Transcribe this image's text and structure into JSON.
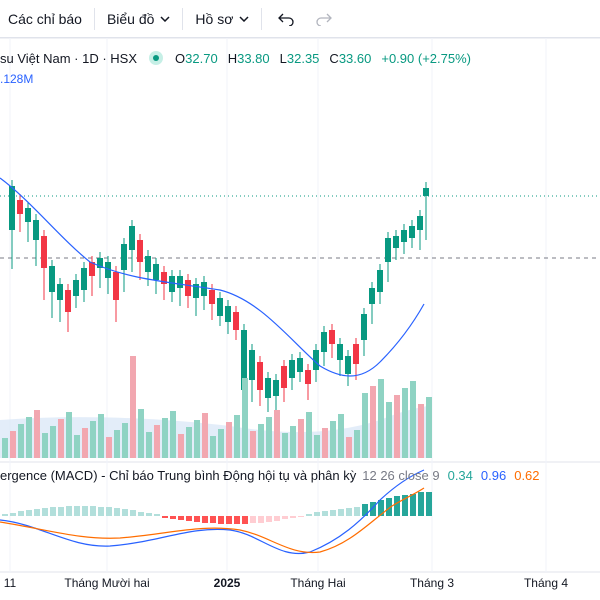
{
  "toolbar": {
    "indicators_label": "Các chỉ báo",
    "chart_label": "Biểu đồ",
    "profile_label": "Hồ sơ"
  },
  "legend": {
    "symbol_title": "su Việt Nam · 1D · HSX",
    "open_label": "O",
    "open_value": "32.70",
    "high_label": "H",
    "high_value": "33.80",
    "low_label": "L",
    "low_value": "32.35",
    "close_label": "C",
    "close_value": "33.60",
    "change": "+0.90 (+2.75%)",
    "volume": ".128M"
  },
  "macd_legend": {
    "name": "ergence (MACD) - Chỉ báo Trung bình Động hội tụ và phân kỳ",
    "params": "12 26 close 9",
    "histogram": "0.34",
    "macd": "0.96",
    "signal": "0.62"
  },
  "time_axis": [
    {
      "label": "11",
      "bold": false
    },
    {
      "label": "Tháng Mười hai",
      "bold": false
    },
    {
      "label": "2025",
      "bold": true
    },
    {
      "label": "Tháng Hai",
      "bold": false
    },
    {
      "label": "Tháng 3",
      "bold": false
    },
    {
      "label": "Tháng 4",
      "bold": false
    }
  ],
  "colors": {
    "up": "#089981",
    "down": "#f23645",
    "ma": "#2962ff",
    "macd_line": "#2962ff",
    "signal_line": "#ff6d00",
    "vol_up": "#8fd3c3",
    "vol_down": "#f2a7b0",
    "hist_up_strong": "#26a69a",
    "hist_up_weak": "#b2dfdb",
    "hist_down_strong": "#ff5252",
    "hist_down_weak": "#ffcdd2"
  },
  "icons": {
    "chevron": "chevron-down-icon",
    "undo": "undo-icon",
    "redo": "redo-icon"
  }
}
